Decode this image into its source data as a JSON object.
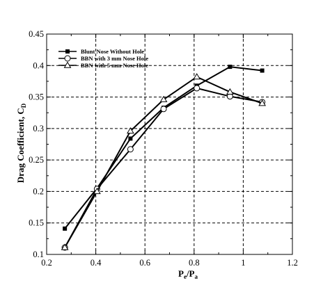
{
  "chart_data": {
    "type": "line",
    "xlabel": {
      "main": "P",
      "sub1": "e",
      "sep": "/P",
      "sub2": "a"
    },
    "ylabel": {
      "main": "Drag Coefficient, C",
      "sub": "D"
    },
    "xlim": [
      0.2,
      1.2
    ],
    "ylim": [
      0.1,
      0.45
    ],
    "xticks": [
      0.2,
      0.4,
      0.6,
      0.8,
      1.0,
      1.2
    ],
    "xtick_labels": [
      "0.2",
      "0.4",
      "0.6",
      "0.8",
      "1",
      "1.2"
    ],
    "yticks": [
      0.1,
      0.15,
      0.2,
      0.25,
      0.3,
      0.35,
      0.4,
      0.45
    ],
    "ytick_labels": [
      "0.1",
      "0.15",
      "0.2",
      "0.25",
      "0.3",
      "0.35",
      "0.4",
      "0.45"
    ],
    "grid": true,
    "grid_style": "dashed",
    "legend_position": "top-left",
    "series": [
      {
        "name": "Blunt Nose Without Hole",
        "marker": "square",
        "x": [
          0.274,
          0.405,
          0.541,
          0.676,
          0.811,
          0.946,
          1.077
        ],
        "y": [
          0.141,
          0.205,
          0.284,
          0.333,
          0.368,
          0.398,
          0.392
        ]
      },
      {
        "name": "BBN with 3 mm Nose Hole",
        "marker": "circle",
        "x": [
          0.274,
          0.405,
          0.541,
          0.676,
          0.811,
          0.946,
          1.077
        ],
        "y": [
          0.111,
          0.204,
          0.267,
          0.331,
          0.364,
          0.351,
          0.342
        ]
      },
      {
        "name": "BBN with 5 mm Nose Hole",
        "marker": "triangle",
        "x": [
          0.274,
          0.405,
          0.541,
          0.676,
          0.811,
          0.946,
          1.077
        ],
        "y": [
          0.111,
          0.2,
          0.296,
          0.346,
          0.382,
          0.358,
          0.34
        ]
      }
    ]
  }
}
